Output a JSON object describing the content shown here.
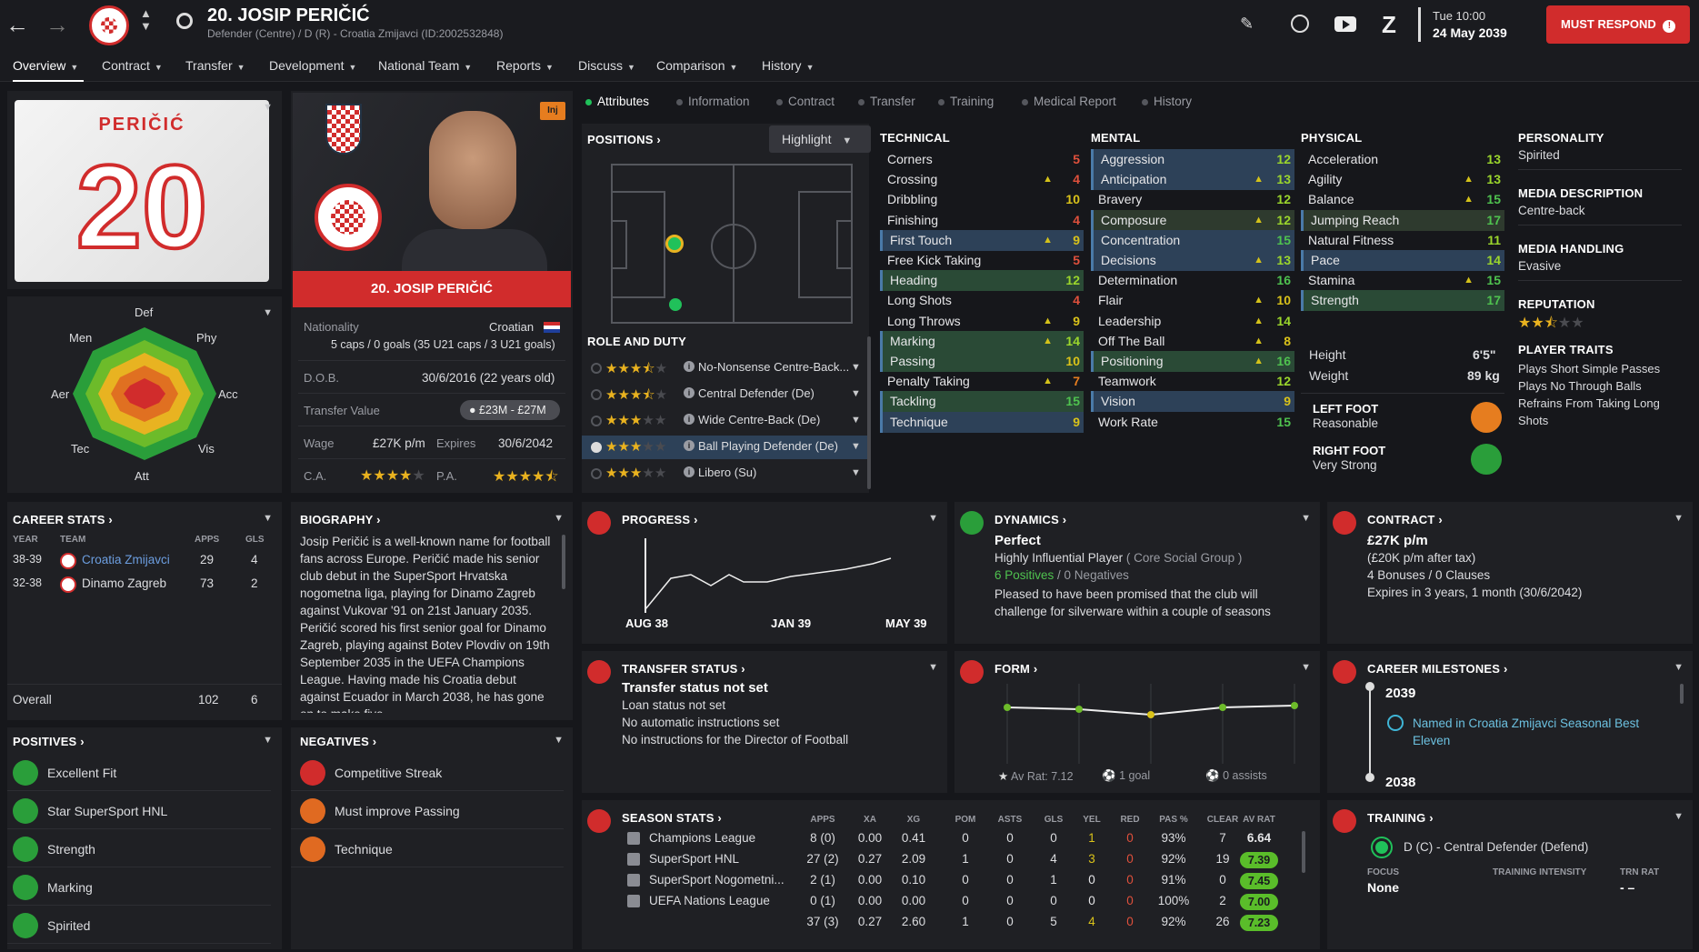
{
  "header": {
    "player_title": "20. JOSIP PERIČIĆ",
    "subtitle": "Defender (Centre) / D (R) - Croatia Zmijavci (ID:2002532848)",
    "date_day": "Tue 10:00",
    "date_full": "24 May 2039",
    "must_respond": "MUST RESPOND"
  },
  "nav": {
    "items": [
      "Overview",
      "Contract",
      "Transfer",
      "Development",
      "National Team",
      "Reports",
      "Discuss",
      "Comparison",
      "History"
    ]
  },
  "shirt": {
    "name": "PERIČIĆ",
    "number": "20"
  },
  "profile": {
    "name_banner": "20. JOSIP PERIČIĆ",
    "inj_badge": "Inj",
    "nationality_label": "Nationality",
    "nationality": "Croatian",
    "caps": "5 caps / 0 goals (35 U21 caps / 3 U21 goals)",
    "dob_label": "D.O.B.",
    "dob": "30/6/2016 (22 years old)",
    "tv_label": "Transfer Value",
    "tv": "£23M - £27M",
    "wage_label": "Wage",
    "wage": "£27K p/m",
    "expires_label": "Expires",
    "expires": "30/6/2042",
    "ca_label": "C.A.",
    "pa_label": "P.A.",
    "ca_stars": 4,
    "pa_stars": 4.5
  },
  "radar": {
    "labels": {
      "def": "Def",
      "phy": "Phy",
      "acc": "Acc",
      "vis": "Vis",
      "att": "Att",
      "tec": "Tec",
      "aer": "Aer",
      "men": "Men"
    }
  },
  "subtabs": [
    "Attributes",
    "Information",
    "Contract",
    "Transfer",
    "Training",
    "Medical Report",
    "History"
  ],
  "positions": {
    "title": "POSITIONS",
    "highlight": "Highlight",
    "role_title": "ROLE AND DUTY",
    "roles": [
      {
        "name": "No-Nonsense Centre-Back...",
        "stars": 3.5
      },
      {
        "name": "Central Defender (De)",
        "stars": 3.5
      },
      {
        "name": "Wide Centre-Back (De)",
        "stars": 3
      },
      {
        "name": "Ball Playing Defender (De)",
        "stars": 3
      },
      {
        "name": "Libero (Su)",
        "stars": 3
      }
    ]
  },
  "technical": {
    "title": "TECHNICAL",
    "attrs": [
      {
        "n": "Corners",
        "v": "5"
      },
      {
        "n": "Crossing",
        "v": "4"
      },
      {
        "n": "Dribbling",
        "v": "10"
      },
      {
        "n": "Finishing",
        "v": "4"
      },
      {
        "n": "First Touch",
        "v": "9"
      },
      {
        "n": "Free Kick Taking",
        "v": "5"
      },
      {
        "n": "Heading",
        "v": "12"
      },
      {
        "n": "Long Shots",
        "v": "4"
      },
      {
        "n": "Long Throws",
        "v": "9"
      },
      {
        "n": "Marking",
        "v": "14"
      },
      {
        "n": "Passing",
        "v": "10"
      },
      {
        "n": "Penalty Taking",
        "v": "7"
      },
      {
        "n": "Tackling",
        "v": "15"
      },
      {
        "n": "Technique",
        "v": "9"
      }
    ]
  },
  "mental": {
    "title": "MENTAL",
    "attrs": [
      {
        "n": "Aggression",
        "v": "12"
      },
      {
        "n": "Anticipation",
        "v": "13"
      },
      {
        "n": "Bravery",
        "v": "12"
      },
      {
        "n": "Composure",
        "v": "12"
      },
      {
        "n": "Concentration",
        "v": "15"
      },
      {
        "n": "Decisions",
        "v": "13"
      },
      {
        "n": "Determination",
        "v": "16"
      },
      {
        "n": "Flair",
        "v": "10"
      },
      {
        "n": "Leadership",
        "v": "14"
      },
      {
        "n": "Off The Ball",
        "v": "8"
      },
      {
        "n": "Positioning",
        "v": "16"
      },
      {
        "n": "Teamwork",
        "v": "12"
      },
      {
        "n": "Vision",
        "v": "9"
      },
      {
        "n": "Work Rate",
        "v": "15"
      }
    ]
  },
  "physical": {
    "title": "PHYSICAL",
    "attrs": [
      {
        "n": "Acceleration",
        "v": "13"
      },
      {
        "n": "Agility",
        "v": "13"
      },
      {
        "n": "Balance",
        "v": "15"
      },
      {
        "n": "Jumping Reach",
        "v": "17"
      },
      {
        "n": "Natural Fitness",
        "v": "11"
      },
      {
        "n": "Pace",
        "v": "14"
      },
      {
        "n": "Stamina",
        "v": "15"
      },
      {
        "n": "Strength",
        "v": "17"
      }
    ],
    "height_label": "Height",
    "height": "6'5\"",
    "weight_label": "Weight",
    "weight": "89 kg",
    "left_foot_label": "LEFT FOOT",
    "left_foot": "Reasonable",
    "right_foot_label": "RIGHT FOOT",
    "right_foot": "Very Strong"
  },
  "personality": {
    "personality_label": "PERSONALITY",
    "personality": "Spirited",
    "media_desc_label": "MEDIA DESCRIPTION",
    "media_desc": "Centre-back",
    "media_handling_label": "MEDIA HANDLING",
    "media_handling": "Evasive",
    "reputation_label": "REPUTATION",
    "reputation_stars": 2.5,
    "traits_label": "PLAYER TRAITS",
    "traits": [
      "Plays Short Simple Passes",
      "Plays No Through Balls",
      "Refrains From Taking Long Shots"
    ]
  },
  "career": {
    "title": "CAREER STATS",
    "h_year": "YEAR",
    "h_team": "TEAM",
    "h_apps": "APPS",
    "h_gls": "GLS",
    "rows": [
      {
        "year": "38-39",
        "team": "Croatia Zmijavci",
        "apps": "29",
        "gls": "4"
      },
      {
        "year": "32-38",
        "team": "Dinamo Zagreb",
        "apps": "73",
        "gls": "2"
      }
    ],
    "overall_label": "Overall",
    "overall_apps": "102",
    "overall_gls": "6"
  },
  "biography": {
    "title": "BIOGRAPHY",
    "text": "Josip Peričić is a well-known name for football fans across Europe. Peričić made his senior club debut in the SuperSport Hrvatska nogometna liga, playing for Dinamo Zagreb against Vukovar '91 on 21st January 2035. Peričić scored his first senior goal for Dinamo Zagreb, playing against Botev Plovdiv on 19th September 2035 in the UEFA Champions League. Having made his Croatia debut against Ecuador in March 2038, he has gone on to make five"
  },
  "positives": {
    "title": "POSITIVES",
    "items": [
      "Excellent Fit",
      "Star SuperSport HNL",
      "Strength",
      "Marking",
      "Spirited"
    ]
  },
  "negatives": {
    "title": "NEGATIVES",
    "items": [
      "Competitive Streak",
      "Must improve Passing",
      "Technique"
    ]
  },
  "progress": {
    "title": "PROGRESS",
    "labels": [
      "AUG 38",
      "JAN 39",
      "MAY 39"
    ]
  },
  "dynamics": {
    "title": "DYNAMICS",
    "status": "Perfect",
    "influence": "Highly Influential Player",
    "group": "( Core Social Group )",
    "positives": "6 Positives",
    "negatives": "/ 0 Negatives",
    "note": "Pleased to have been promised that the club will challenge for silverware within a couple of seasons"
  },
  "contract": {
    "title": "CONTRACT",
    "wage": "£27K p/m",
    "after_tax": "(£20K p/m after tax)",
    "bonuses": "4 Bonuses / 0 Clauses",
    "expires": "Expires in 3 years, 1 month (30/6/2042)"
  },
  "transfer": {
    "title": "TRANSFER STATUS",
    "status": "Transfer status not set",
    "loan": "Loan status not set",
    "auto": "No automatic instructions set",
    "dof": "No instructions for the Director of Football"
  },
  "form": {
    "title": "FORM",
    "av_rat": "Av Rat: 7.12",
    "goals": "1 goal",
    "assists": "0 assists"
  },
  "milestones": {
    "title": "CAREER MILESTONES",
    "year1": "2039",
    "item1": "Named in Croatia Zmijavci Seasonal Best Eleven",
    "year2": "2038"
  },
  "season": {
    "title": "SEASON STATS",
    "headers": [
      "APPS",
      "XA",
      "XG",
      "POM",
      "ASTS",
      "GLS",
      "YEL",
      "RED",
      "PAS %",
      "CLEAR",
      "AV RAT"
    ],
    "rows": [
      {
        "comp": "Champions League",
        "c": [
          "8 (0)",
          "0.00",
          "0.41",
          "0",
          "0",
          "0",
          "1",
          "0",
          "93%",
          "7",
          "6.64"
        ]
      },
      {
        "comp": "SuperSport HNL",
        "c": [
          "27 (2)",
          "0.27",
          "2.09",
          "1",
          "0",
          "4",
          "3",
          "0",
          "92%",
          "19",
          "7.39"
        ]
      },
      {
        "comp": "SuperSport Nogometni...",
        "c": [
          "2 (1)",
          "0.00",
          "0.10",
          "0",
          "0",
          "1",
          "0",
          "0",
          "91%",
          "0",
          "7.45"
        ]
      },
      {
        "comp": "UEFA Nations League",
        "c": [
          "0 (1)",
          "0.00",
          "0.00",
          "0",
          "0",
          "0",
          "0",
          "0",
          "100%",
          "2",
          "7.00"
        ]
      },
      {
        "comp": "",
        "c": [
          "37 (3)",
          "0.27",
          "2.60",
          "1",
          "0",
          "5",
          "4",
          "0",
          "92%",
          "26",
          "7.23"
        ]
      }
    ]
  },
  "training": {
    "title": "TRAINING",
    "role": "D (C) - Central Defender (Defend)",
    "focus_label": "FOCUS",
    "focus": "None",
    "intensity_label": "TRAINING INTENSITY",
    "trn_label": "TRN RAT",
    "trn": "- –"
  },
  "colors": {
    "accent_red": "#d12c2c",
    "attr_green": "#4fc24f",
    "attr_yellow": "#d9c21a",
    "attr_red": "#e0503c"
  }
}
